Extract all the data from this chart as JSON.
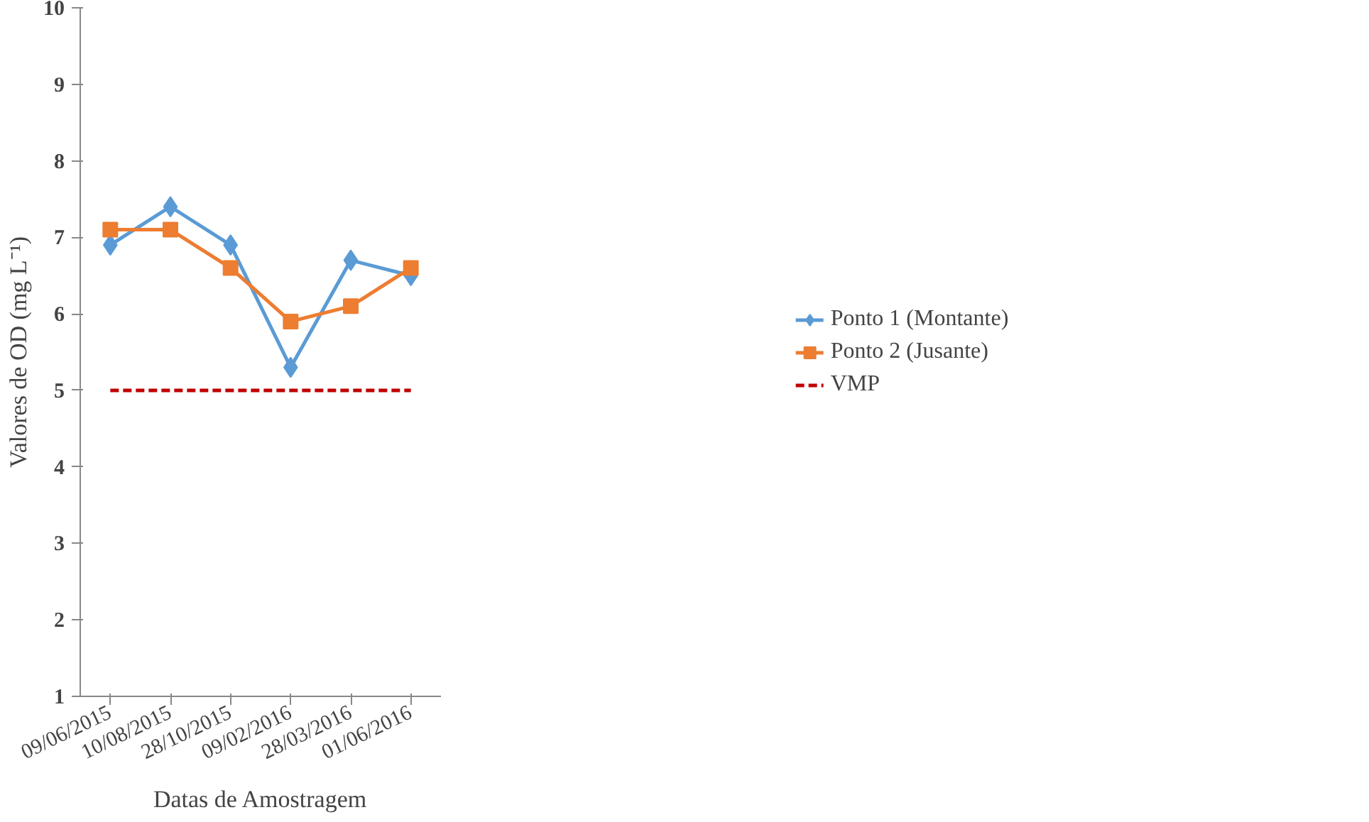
{
  "chart_data": {
    "type": "line",
    "xlabel": "Datas de Amostragem",
    "ylabel": "Valores de OD (mg L⁻¹)",
    "categories": [
      "09/06/2015",
      "10/08/2015",
      "28/10/2015",
      "09/02/2016",
      "28/03/2016",
      "01/06/2016"
    ],
    "series": [
      {
        "name": "Ponto 1 (Montante)",
        "color": "#5b9bd5",
        "values": [
          6.9,
          7.4,
          6.9,
          5.3,
          6.7,
          6.5
        ],
        "marker": "diamond"
      },
      {
        "name": "Ponto 2 (Jusante)",
        "color": "#ed7d31",
        "values": [
          7.1,
          7.1,
          6.6,
          5.9,
          6.1,
          6.6
        ],
        "marker": "square"
      },
      {
        "name": "VMP",
        "color": "#c00000",
        "values": [
          5,
          5,
          5,
          5,
          5,
          5
        ],
        "marker": "none",
        "line_style": "dashed"
      }
    ],
    "ylim": [
      1,
      10
    ],
    "yticks": [
      1,
      2,
      3,
      4,
      5,
      6,
      7,
      8,
      9,
      10
    ],
    "grid": false,
    "legend": "right"
  }
}
